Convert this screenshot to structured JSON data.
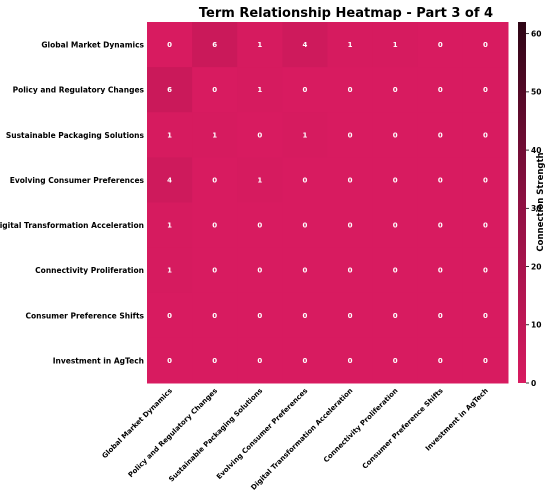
{
  "chart_data": {
    "type": "heatmap",
    "title": "Term Relationship Heatmap - Part 3 of 4",
    "rows": [
      "Global Market Dynamics",
      "Policy and Regulatory Changes",
      "Sustainable Packaging Solutions",
      "Evolving Consumer Preferences",
      "Digital Transformation Acceleration",
      "Connectivity Proliferation",
      "Consumer Preference Shifts",
      "Investment in AgTech"
    ],
    "columns": [
      "Global Market Dynamics",
      "Policy and Regulatory Changes",
      "Sustainable Packaging Solutions",
      "Evolving Consumer Preferences",
      "Digital Transformation Acceleration",
      "Connectivity Proliferation",
      "Consumer Preference Shifts",
      "Investment in AgTech"
    ],
    "values": [
      [
        0,
        6,
        1,
        4,
        1,
        1,
        0,
        0
      ],
      [
        6,
        0,
        1,
        0,
        0,
        0,
        0,
        0
      ],
      [
        1,
        1,
        0,
        1,
        0,
        0,
        0,
        0
      ],
      [
        4,
        0,
        1,
        0,
        0,
        0,
        0,
        0
      ],
      [
        1,
        0,
        0,
        0,
        0,
        0,
        0,
        0
      ],
      [
        1,
        0,
        0,
        0,
        0,
        0,
        0,
        0
      ],
      [
        0,
        0,
        0,
        0,
        0,
        0,
        0,
        0
      ],
      [
        0,
        0,
        0,
        0,
        0,
        0,
        0,
        0
      ]
    ],
    "colorbar": {
      "label": "Connection Strength",
      "min": 0,
      "max": 62,
      "ticks": [
        0,
        10,
        20,
        30,
        40,
        50,
        60
      ],
      "colors": [
        "#d81b60",
        "#8e1042",
        "#2d0515"
      ]
    },
    "grid": false,
    "legend": "right"
  }
}
